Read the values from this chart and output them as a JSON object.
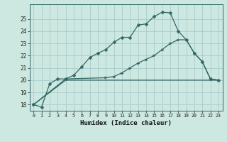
{
  "xlabel": "Humidex (Indice chaleur)",
  "background_color": "#cce8e0",
  "grid_color": "#a8cccc",
  "line_color": "#336666",
  "xlim": [
    -0.5,
    23.5
  ],
  "ylim": [
    17.5,
    26.2
  ],
  "yticks": [
    18,
    19,
    20,
    21,
    22,
    23,
    24,
    25
  ],
  "xticks": [
    0,
    1,
    2,
    3,
    4,
    5,
    6,
    7,
    8,
    9,
    10,
    11,
    12,
    13,
    14,
    15,
    16,
    17,
    18,
    19,
    20,
    21,
    22,
    23
  ],
  "line1_x": [
    0,
    1,
    2,
    3,
    4,
    5,
    6,
    7,
    8,
    9,
    10,
    11,
    12,
    13,
    14,
    15,
    16,
    17,
    18,
    19,
    20,
    21,
    22,
    23
  ],
  "line1_y": [
    18.0,
    17.8,
    19.7,
    20.1,
    20.1,
    20.4,
    21.1,
    21.85,
    22.2,
    22.5,
    23.1,
    23.5,
    23.5,
    24.5,
    24.6,
    25.2,
    25.55,
    25.5,
    24.0,
    23.3,
    22.2,
    21.5,
    20.1,
    20.0
  ],
  "line2_x": [
    0,
    4,
    9,
    10,
    11,
    12,
    13,
    14,
    15,
    16,
    17,
    18,
    19,
    20,
    21,
    22,
    23
  ],
  "line2_y": [
    18.0,
    20.1,
    20.2,
    20.3,
    20.6,
    21.0,
    21.4,
    21.7,
    22.0,
    22.5,
    23.0,
    23.3,
    23.3,
    22.2,
    21.5,
    20.1,
    20.0
  ],
  "line3_x": [
    0,
    4,
    23
  ],
  "line3_y": [
    18.0,
    20.0,
    20.0
  ]
}
